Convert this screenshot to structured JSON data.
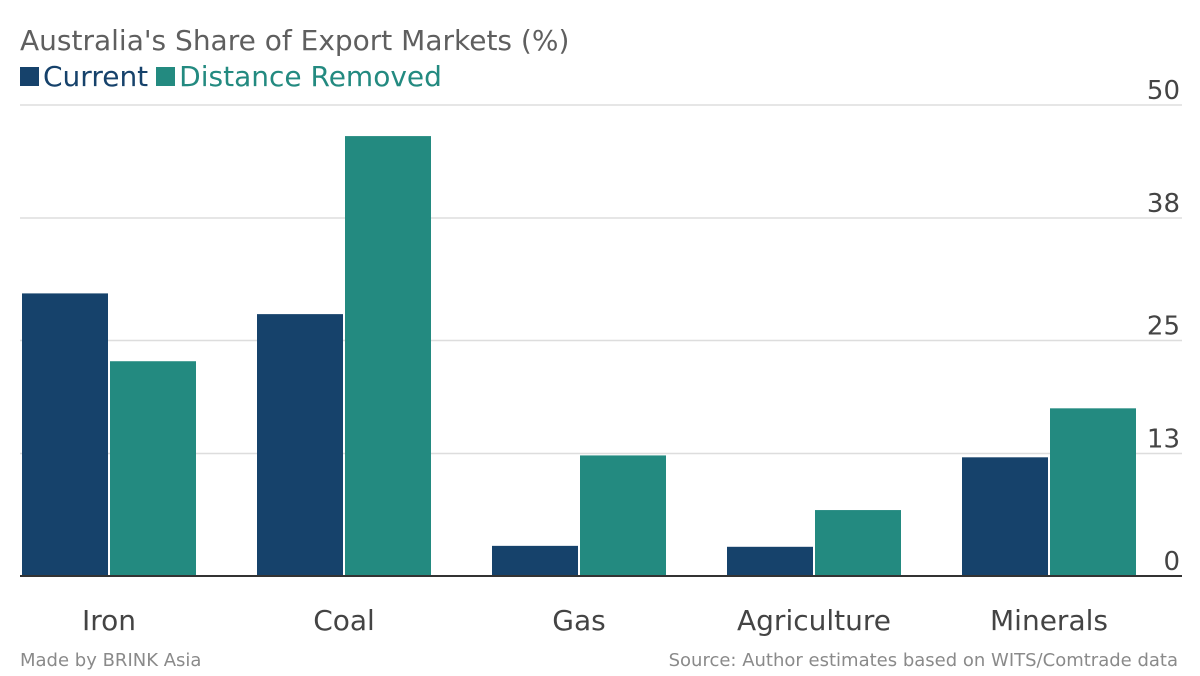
{
  "colors": {
    "current": "#16426b",
    "distance_removed": "#238a80",
    "grid": "#dddddd",
    "axis": "#333333",
    "text": "#444444"
  },
  "chart_data": {
    "type": "bar",
    "title": "Australia's Share of Export Markets (%)",
    "categories": [
      "Iron",
      "Coal",
      "Gas",
      "Agriculture",
      "Minerals"
    ],
    "series": [
      {
        "name": "Current",
        "values": [
          30.0,
          27.8,
          3.2,
          3.1,
          12.6
        ]
      },
      {
        "name": "Distance Removed",
        "values": [
          22.8,
          46.7,
          12.8,
          7.0,
          17.8
        ]
      }
    ],
    "yticks": [
      "0",
      "13",
      "25",
      "38",
      "50"
    ],
    "ylim": [
      0,
      50
    ],
    "y_axis_side": "right",
    "grid": true,
    "legend_position": "top-left"
  },
  "footer": {
    "credit": "Made by BRINK Asia",
    "source": "Source: Author estimates based on WITS/Comtrade data"
  }
}
